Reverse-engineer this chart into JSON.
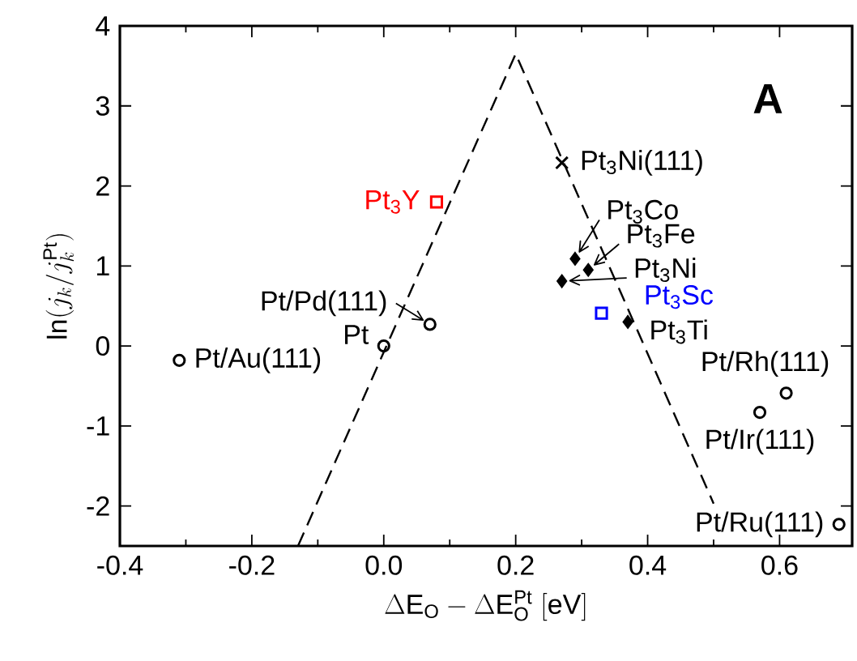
{
  "chart_data": {
    "type": "scatter",
    "xlabel": "\\Delta \\mathrm{E}_{\\mathrm{O}} - \\Delta \\mathrm{E}_{\\mathrm{O}}^{\\mathrm{Pt}}\\ [\\mathrm{eV}]",
    "ylabel": "\\mathrm{ln}(j_k/j_k^{\\mathrm{Pt}})",
    "xlim": [
      -0.4,
      0.71
    ],
    "ylim": [
      -2.5,
      4
    ],
    "xticks": [
      -0.4,
      -0.2,
      {
        "value": 0,
        "label": "0.0"
      },
      0.2,
      0.4,
      0.6
    ],
    "yticks": [
      -2,
      -1,
      0,
      1,
      2,
      3,
      4
    ],
    "grid": false,
    "series": [
      {
        "marker": "circle",
        "color": "#000000",
        "x": [
          -0.31,
          0.07,
          0.61,
          0.57,
          0.69
        ],
        "values": [
          -0.18,
          0.27,
          -0.59,
          -0.83,
          -2.23
        ]
      },
      {
        "marker": "circle",
        "color": "#000000",
        "x": [
          0
        ],
        "values": [
          0
        ]
      },
      {
        "marker": "diamond",
        "color": "#000000",
        "x": [
          0.29,
          0.31,
          0.27,
          0.37
        ],
        "values": [
          1.09,
          0.95,
          0.81,
          0.3
        ]
      },
      {
        "marker": "cross",
        "color": "#000000",
        "x": [
          0.27
        ],
        "values": [
          2.29
        ]
      },
      {
        "marker": "square",
        "color": "#ff0000",
        "x": [
          0.08
        ],
        "values": [
          1.8
        ]
      },
      {
        "marker": "square",
        "color": "#0000ff",
        "x": [
          0.33
        ],
        "values": [
          0.41
        ]
      },
      {
        "type": "line",
        "marker": "none",
        "line_style": "dashed",
        "color": "#000000",
        "x": [
          -0.13,
          0.2,
          0.5
        ],
        "values": [
          -2.5,
          3.65,
          -1.97
        ]
      }
    ],
    "annotations": [
      {
        "text": "Pt/Au(111)",
        "x": -0.31,
        "y": -0.18
      },
      {
        "text": "Pt/Pd(111)",
        "x": 0.07,
        "y": 0.27
      },
      {
        "text": "Pt",
        "x": 0,
        "y": 0
      },
      {
        "text": "Pt/Rh(111)",
        "x": 0.61,
        "y": -0.59
      },
      {
        "text": "Pt/Ir(111)",
        "x": 0.57,
        "y": -0.83
      },
      {
        "text": "Pt/Ru(111)",
        "x": 0.69,
        "y": -2.23
      },
      {
        "text": "Pt$_{3}$Ni(111)",
        "x": 0.27,
        "y": 2.29
      },
      {
        "text": "Pt$_{3}$Y",
        "x": 0.08,
        "y": 1.8
      },
      {
        "text": "Pt$_{3}$Co",
        "x": 0.29,
        "y": 1.09
      },
      {
        "text": "Pt$_{3}$Fe",
        "x": 0.31,
        "y": 0.95
      },
      {
        "text": "Pt$_{3}$Ni",
        "x": 0.27,
        "y": 0.81
      },
      {
        "text": "Pt$_{3}$Sc",
        "x": 0.33,
        "y": 0.41
      },
      {
        "text": "Pt$_{3}$Ti",
        "x": 0.37,
        "y": 0.3
      },
      "A"
    ]
  }
}
